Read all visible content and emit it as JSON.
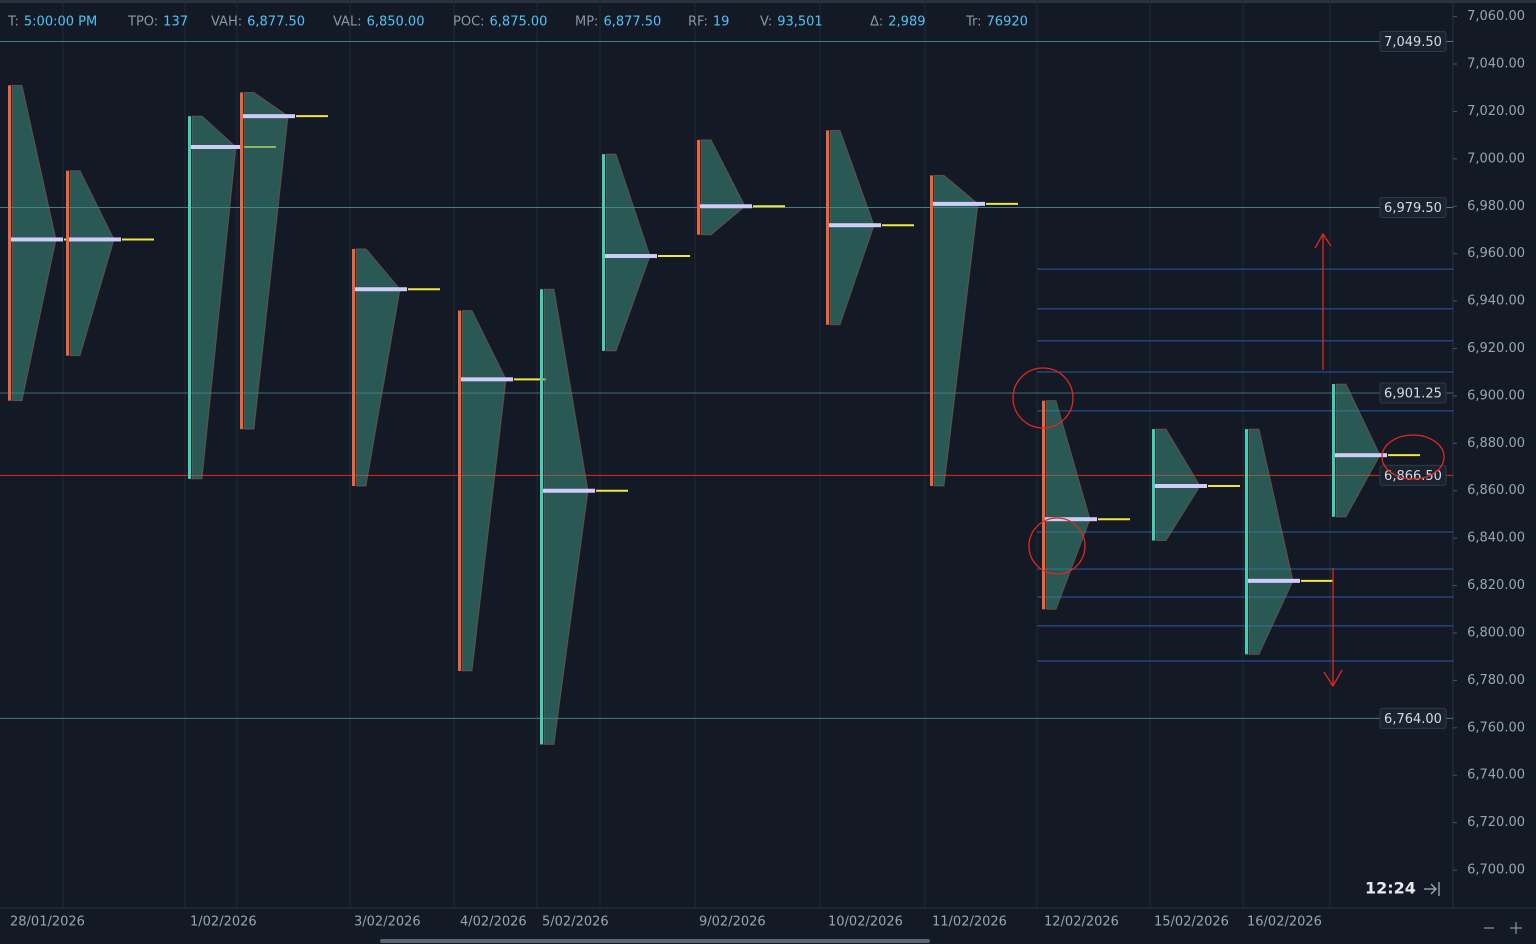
{
  "header": {
    "items": [
      {
        "label": "T:",
        "value": "5:00:00 PM"
      },
      {
        "label": "TPO:",
        "value": "137"
      },
      {
        "label": "VAH:",
        "value": "6,877.50"
      },
      {
        "label": "VAL:",
        "value": "6,850.00"
      },
      {
        "label": "POC:",
        "value": "6,875.00"
      },
      {
        "label": "MP:",
        "value": "6,877.50"
      },
      {
        "label": "RF:",
        "value": "19"
      },
      {
        "label": "V:",
        "value": "93,501"
      },
      {
        "label": "Δ:",
        "value": "2,989"
      },
      {
        "label": "Tr:",
        "value": "76920"
      }
    ]
  },
  "clock": "12:24",
  "chart_data": {
    "type": "market-profile",
    "ylim": [
      6684,
      7067
    ],
    "yticks": [
      {
        "value": 6700,
        "label": "6,700.00"
      },
      {
        "value": 6720,
        "label": "6,720.00"
      },
      {
        "value": 6740,
        "label": "6,740.00"
      },
      {
        "value": 6760,
        "label": "6,760.00"
      },
      {
        "value": 6780,
        "label": "6,780.00"
      },
      {
        "value": 6800,
        "label": "6,800.00"
      },
      {
        "value": 6820,
        "label": "6,820.00"
      },
      {
        "value": 6840,
        "label": "6,840.00"
      },
      {
        "value": 6860,
        "label": "6,860.00"
      },
      {
        "value": 6880,
        "label": "6,880.00"
      },
      {
        "value": 6900,
        "label": "6,900.00"
      },
      {
        "value": 6920,
        "label": "6,920.00"
      },
      {
        "value": 6940,
        "label": "6,940.00"
      },
      {
        "value": 6960,
        "label": "6,960.00"
      },
      {
        "value": 6980,
        "label": "6,980.00"
      },
      {
        "value": 7000,
        "label": "7,000.00"
      },
      {
        "value": 7020,
        "label": "7,020.00"
      },
      {
        "value": 7040,
        "label": "7,040.00"
      },
      {
        "value": 7060,
        "label": "7,060.00"
      }
    ],
    "categories": [
      "28/01/2026",
      null,
      "1/02/2026",
      null,
      "3/02/2026",
      "4/02/2026",
      "5/02/2026",
      null,
      "9/02/2026",
      "10/02/2026",
      "11/02/2026",
      "12/02/2026",
      "15/02/2026",
      "16/02/2026",
      null
    ],
    "sessions": [
      {
        "high": 7031,
        "low": 6898,
        "poc": 6966,
        "color": "#f0643c"
      },
      {
        "high": 6995,
        "low": 6917,
        "poc": 6966,
        "color": "#f0643c"
      },
      {
        "high": 7018,
        "low": 6865,
        "poc": 7005,
        "color": "#3fd1b5"
      },
      {
        "high": 7028,
        "low": 6886,
        "poc": 7018,
        "color": "#f0643c"
      },
      {
        "high": 6962,
        "low": 6862,
        "poc": 6945,
        "color": "#f0643c"
      },
      {
        "high": 6936,
        "low": 6784,
        "poc": 6907,
        "color": "#f0643c"
      },
      {
        "high": 6945,
        "low": 6753,
        "poc": 6860,
        "color": "#3fd1b5"
      },
      {
        "high": 7002,
        "low": 6919,
        "poc": 6959,
        "color": "#3fd1b5"
      },
      {
        "high": 7008,
        "low": 6968,
        "poc": 6980,
        "color": "#f0643c"
      },
      {
        "high": 7012,
        "low": 6930,
        "poc": 6972,
        "color": "#f0643c"
      },
      {
        "high": 6993,
        "low": 6862,
        "poc": 6981,
        "color": "#f0643c"
      },
      {
        "high": 6898,
        "low": 6810,
        "poc": 6848,
        "color": "#f0643c"
      },
      {
        "high": 6886,
        "low": 6839,
        "poc": 6862,
        "color": "#3fd1b5"
      },
      {
        "high": 6886,
        "low": 6791,
        "poc": 6822,
        "color": "#3fd1b5"
      },
      {
        "high": 6905,
        "low": 6849,
        "poc": 6875,
        "color": "#3fd1b5"
      }
    ],
    "levels": [
      {
        "value": 7049.5,
        "label": "7,049.50",
        "color": "#3f7f8c"
      },
      {
        "value": 6979.5,
        "label": "6,979.50",
        "color": "#3f7f8c"
      },
      {
        "value": 6901.25,
        "label": "6,901.25",
        "color": "#3f6f7c"
      },
      {
        "value": 6866.5,
        "label": "6,866.50",
        "color": "#e0281e"
      },
      {
        "value": 6764,
        "label": "6,764.00",
        "color": "#3f7f8c"
      }
    ],
    "zones": {
      "color": "#2d5ba6",
      "values": [
        6953.5,
        6936.7,
        6923.2,
        6910.1,
        6893.7,
        6842.6,
        6827.0,
        6815.2,
        6803.0,
        6788.2
      ]
    }
  }
}
